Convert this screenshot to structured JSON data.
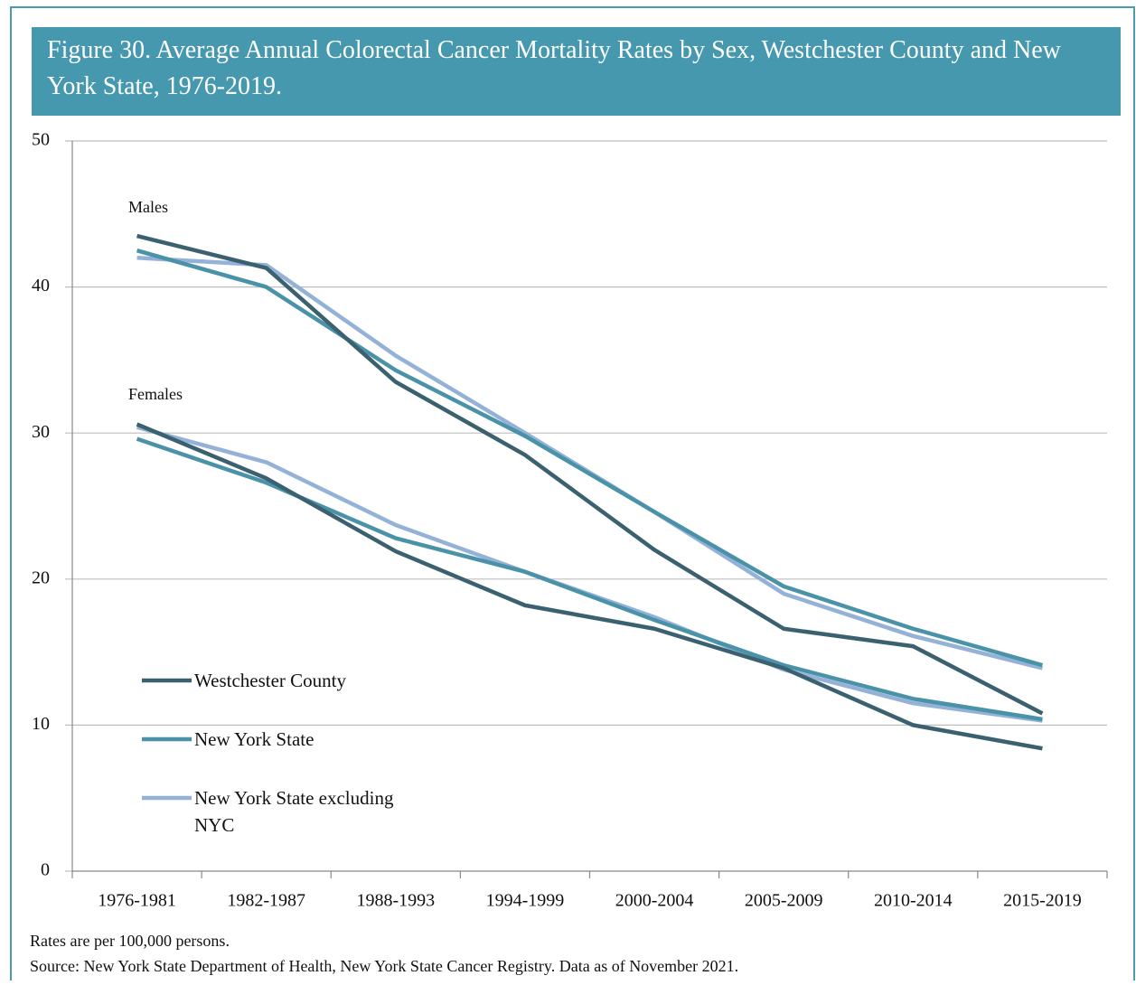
{
  "chart_data": {
    "type": "line",
    "title": "Figure 30. Average Annual Colorectal Cancer Mortality Rates by Sex, Westchester County and New York State, 1976-2019.",
    "categories": [
      "1976-1981",
      "1982-1987",
      "1988-1993",
      "1994-1999",
      "2000-2004",
      "2005-2009",
      "2010-2014",
      "2015-2019"
    ],
    "annotations": [
      "Males",
      "Females"
    ],
    "series": [
      {
        "name": "Westchester County",
        "color": "#3b6170",
        "values": [
          [
            43.5,
            41.3,
            33.5,
            28.5,
            22.0,
            16.6,
            15.4,
            10.8
          ],
          [
            30.6,
            26.9,
            21.9,
            18.2,
            16.6,
            13.9,
            10.0,
            8.4
          ]
        ]
      },
      {
        "name": "New York State",
        "color": "#4a92a8",
        "values": [
          [
            42.5,
            40.0,
            34.3,
            29.8,
            24.6,
            19.5,
            16.6,
            14.1
          ],
          [
            29.6,
            26.6,
            22.8,
            20.5,
            17.2,
            14.1,
            11.8,
            10.4
          ]
        ]
      },
      {
        "name": "New York State excluding NYC",
        "color": "#94b2d8",
        "values": [
          [
            42.0,
            41.5,
            35.3,
            30.0,
            24.6,
            19.0,
            16.1,
            13.9
          ],
          [
            30.4,
            28.0,
            23.7,
            20.5,
            17.4,
            13.8,
            11.5,
            10.3
          ]
        ]
      }
    ],
    "ylim": [
      0,
      50
    ],
    "yticks": [
      0,
      10,
      20,
      30,
      40,
      50
    ],
    "grid": true,
    "notes": [
      "Rates are per 100,000 persons.",
      "Source: New York State Department of Health, New York State Cancer Registry. Data as of November 2021."
    ]
  }
}
